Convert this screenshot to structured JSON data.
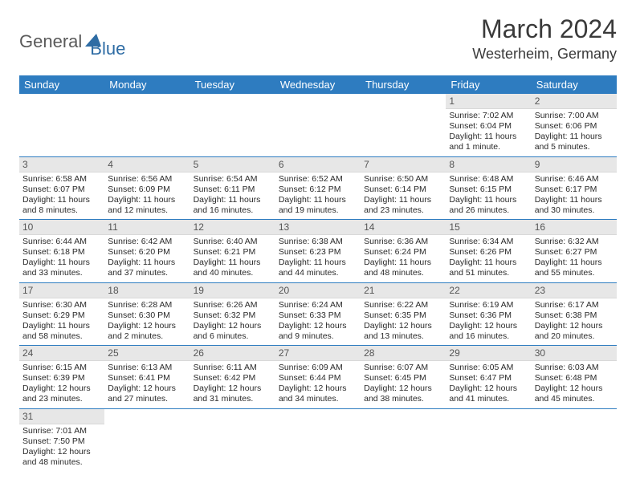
{
  "logo": {
    "general": "General",
    "blue": "Blue"
  },
  "title": {
    "month": "March 2024",
    "location": "Westerheim, Germany"
  },
  "colors": {
    "header_bg": "#2e7cc0",
    "daynum_bg": "#e7e7e7",
    "row_border": "#2e7cc0"
  },
  "typography": {
    "month_fontsize": 32,
    "location_fontsize": 18,
    "dayheader_fontsize": 13,
    "cell_fontsize": 10.5
  },
  "day_headers": [
    "Sunday",
    "Monday",
    "Tuesday",
    "Wednesday",
    "Thursday",
    "Friday",
    "Saturday"
  ],
  "weeks": [
    [
      null,
      null,
      null,
      null,
      null,
      {
        "n": "1",
        "sunrise": "Sunrise: 7:02 AM",
        "sunset": "Sunset: 6:04 PM",
        "daylight": "Daylight: 11 hours and 1 minute."
      },
      {
        "n": "2",
        "sunrise": "Sunrise: 7:00 AM",
        "sunset": "Sunset: 6:06 PM",
        "daylight": "Daylight: 11 hours and 5 minutes."
      }
    ],
    [
      {
        "n": "3",
        "sunrise": "Sunrise: 6:58 AM",
        "sunset": "Sunset: 6:07 PM",
        "daylight": "Daylight: 11 hours and 8 minutes."
      },
      {
        "n": "4",
        "sunrise": "Sunrise: 6:56 AM",
        "sunset": "Sunset: 6:09 PM",
        "daylight": "Daylight: 11 hours and 12 minutes."
      },
      {
        "n": "5",
        "sunrise": "Sunrise: 6:54 AM",
        "sunset": "Sunset: 6:11 PM",
        "daylight": "Daylight: 11 hours and 16 minutes."
      },
      {
        "n": "6",
        "sunrise": "Sunrise: 6:52 AM",
        "sunset": "Sunset: 6:12 PM",
        "daylight": "Daylight: 11 hours and 19 minutes."
      },
      {
        "n": "7",
        "sunrise": "Sunrise: 6:50 AM",
        "sunset": "Sunset: 6:14 PM",
        "daylight": "Daylight: 11 hours and 23 minutes."
      },
      {
        "n": "8",
        "sunrise": "Sunrise: 6:48 AM",
        "sunset": "Sunset: 6:15 PM",
        "daylight": "Daylight: 11 hours and 26 minutes."
      },
      {
        "n": "9",
        "sunrise": "Sunrise: 6:46 AM",
        "sunset": "Sunset: 6:17 PM",
        "daylight": "Daylight: 11 hours and 30 minutes."
      }
    ],
    [
      {
        "n": "10",
        "sunrise": "Sunrise: 6:44 AM",
        "sunset": "Sunset: 6:18 PM",
        "daylight": "Daylight: 11 hours and 33 minutes."
      },
      {
        "n": "11",
        "sunrise": "Sunrise: 6:42 AM",
        "sunset": "Sunset: 6:20 PM",
        "daylight": "Daylight: 11 hours and 37 minutes."
      },
      {
        "n": "12",
        "sunrise": "Sunrise: 6:40 AM",
        "sunset": "Sunset: 6:21 PM",
        "daylight": "Daylight: 11 hours and 40 minutes."
      },
      {
        "n": "13",
        "sunrise": "Sunrise: 6:38 AM",
        "sunset": "Sunset: 6:23 PM",
        "daylight": "Daylight: 11 hours and 44 minutes."
      },
      {
        "n": "14",
        "sunrise": "Sunrise: 6:36 AM",
        "sunset": "Sunset: 6:24 PM",
        "daylight": "Daylight: 11 hours and 48 minutes."
      },
      {
        "n": "15",
        "sunrise": "Sunrise: 6:34 AM",
        "sunset": "Sunset: 6:26 PM",
        "daylight": "Daylight: 11 hours and 51 minutes."
      },
      {
        "n": "16",
        "sunrise": "Sunrise: 6:32 AM",
        "sunset": "Sunset: 6:27 PM",
        "daylight": "Daylight: 11 hours and 55 minutes."
      }
    ],
    [
      {
        "n": "17",
        "sunrise": "Sunrise: 6:30 AM",
        "sunset": "Sunset: 6:29 PM",
        "daylight": "Daylight: 11 hours and 58 minutes."
      },
      {
        "n": "18",
        "sunrise": "Sunrise: 6:28 AM",
        "sunset": "Sunset: 6:30 PM",
        "daylight": "Daylight: 12 hours and 2 minutes."
      },
      {
        "n": "19",
        "sunrise": "Sunrise: 6:26 AM",
        "sunset": "Sunset: 6:32 PM",
        "daylight": "Daylight: 12 hours and 6 minutes."
      },
      {
        "n": "20",
        "sunrise": "Sunrise: 6:24 AM",
        "sunset": "Sunset: 6:33 PM",
        "daylight": "Daylight: 12 hours and 9 minutes."
      },
      {
        "n": "21",
        "sunrise": "Sunrise: 6:22 AM",
        "sunset": "Sunset: 6:35 PM",
        "daylight": "Daylight: 12 hours and 13 minutes."
      },
      {
        "n": "22",
        "sunrise": "Sunrise: 6:19 AM",
        "sunset": "Sunset: 6:36 PM",
        "daylight": "Daylight: 12 hours and 16 minutes."
      },
      {
        "n": "23",
        "sunrise": "Sunrise: 6:17 AM",
        "sunset": "Sunset: 6:38 PM",
        "daylight": "Daylight: 12 hours and 20 minutes."
      }
    ],
    [
      {
        "n": "24",
        "sunrise": "Sunrise: 6:15 AM",
        "sunset": "Sunset: 6:39 PM",
        "daylight": "Daylight: 12 hours and 23 minutes."
      },
      {
        "n": "25",
        "sunrise": "Sunrise: 6:13 AM",
        "sunset": "Sunset: 6:41 PM",
        "daylight": "Daylight: 12 hours and 27 minutes."
      },
      {
        "n": "26",
        "sunrise": "Sunrise: 6:11 AM",
        "sunset": "Sunset: 6:42 PM",
        "daylight": "Daylight: 12 hours and 31 minutes."
      },
      {
        "n": "27",
        "sunrise": "Sunrise: 6:09 AM",
        "sunset": "Sunset: 6:44 PM",
        "daylight": "Daylight: 12 hours and 34 minutes."
      },
      {
        "n": "28",
        "sunrise": "Sunrise: 6:07 AM",
        "sunset": "Sunset: 6:45 PM",
        "daylight": "Daylight: 12 hours and 38 minutes."
      },
      {
        "n": "29",
        "sunrise": "Sunrise: 6:05 AM",
        "sunset": "Sunset: 6:47 PM",
        "daylight": "Daylight: 12 hours and 41 minutes."
      },
      {
        "n": "30",
        "sunrise": "Sunrise: 6:03 AM",
        "sunset": "Sunset: 6:48 PM",
        "daylight": "Daylight: 12 hours and 45 minutes."
      }
    ],
    [
      {
        "n": "31",
        "sunrise": "Sunrise: 7:01 AM",
        "sunset": "Sunset: 7:50 PM",
        "daylight": "Daylight: 12 hours and 48 minutes."
      },
      null,
      null,
      null,
      null,
      null,
      null
    ]
  ]
}
